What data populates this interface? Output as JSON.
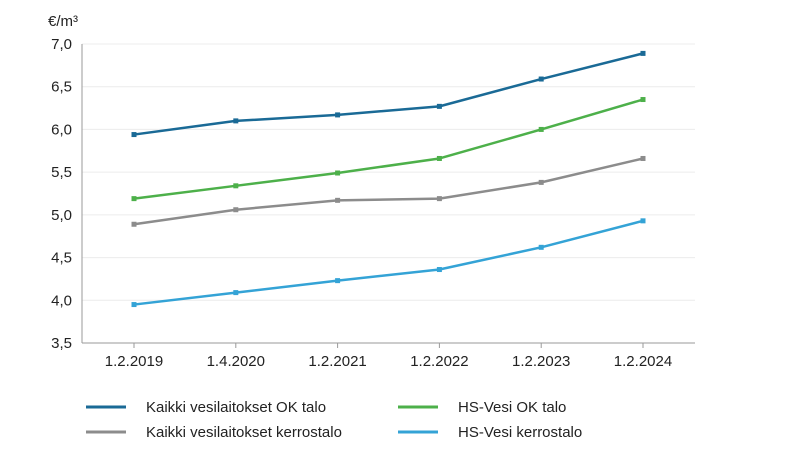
{
  "chart_data": {
    "type": "line",
    "unit_label": "€/m³",
    "categories": [
      "1.2.2019",
      "1.4.2020",
      "1.2.2021",
      "1.2.2022",
      "1.2.2023",
      "1.2.2024"
    ],
    "ylim": [
      3.5,
      7.0
    ],
    "yticks": [
      "3,5",
      "4,0",
      "4,5",
      "5,0",
      "5,5",
      "6,0",
      "6,5",
      "7,0"
    ],
    "ytick_values": [
      3.5,
      4.0,
      4.5,
      5.0,
      5.5,
      6.0,
      6.5,
      7.0
    ],
    "grid": "horizontal",
    "legend_placement": "bottom",
    "series": [
      {
        "name": "Kaikki vesilaitokset OK talo",
        "color": "#1a6a96",
        "values": [
          5.94,
          6.1,
          6.17,
          6.27,
          6.59,
          6.89
        ]
      },
      {
        "name": "HS-Vesi OK talo",
        "color": "#4db04a",
        "values": [
          5.19,
          5.34,
          5.49,
          5.66,
          6.0,
          6.35
        ]
      },
      {
        "name": "Kaikki vesilaitokset kerrostalo",
        "color": "#8c8c8c",
        "values": [
          4.89,
          5.06,
          5.17,
          5.19,
          5.38,
          5.66
        ]
      },
      {
        "name": "HS-Vesi kerrostalo",
        "color": "#34a3d6",
        "values": [
          3.95,
          4.09,
          4.23,
          4.36,
          4.62,
          4.93
        ]
      }
    ]
  }
}
